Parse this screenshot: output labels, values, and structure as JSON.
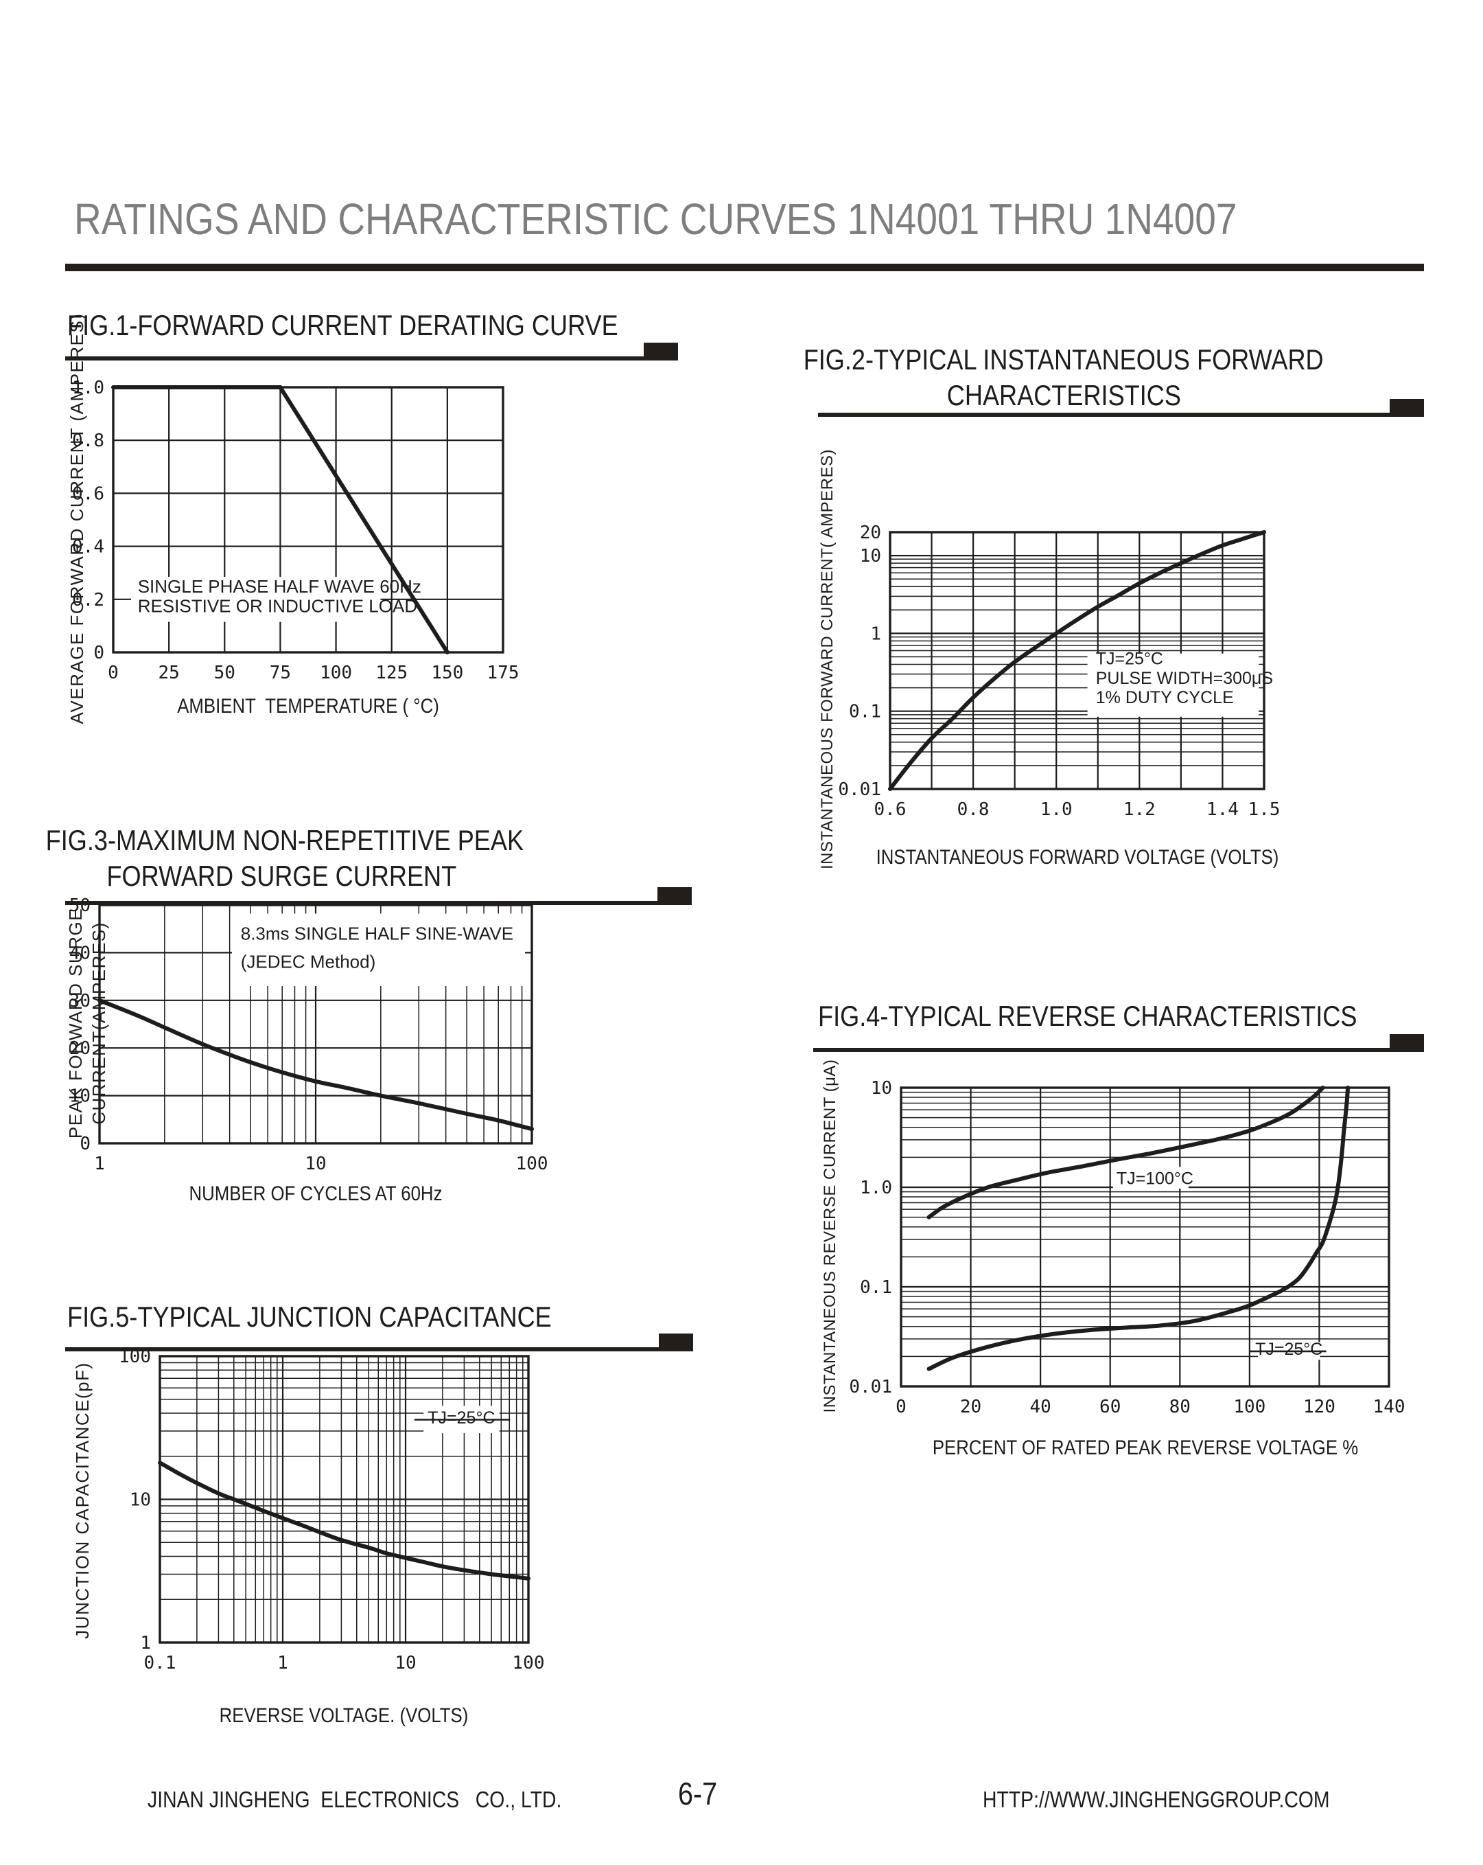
{
  "page": {
    "title": "RATINGS AND CHARACTERISTIC CURVES 1N4001 THRU 1N4007",
    "footer": {
      "company": "JINAN JINGHENG  ELECTRONICS   CO., LTD.",
      "page_number": "6-7",
      "website": "HTTP://WWW.JINGHENGGROUP.COM"
    },
    "colors": {
      "ink": "#1f1d1b",
      "title_gray": "#7e7e7e",
      "background": "#ffffff"
    }
  },
  "chart_data": [
    {
      "id": "fig1",
      "type": "line",
      "title_lines": [
        "FIG.1-FORWARD CURRENT DERATING CURVE"
      ],
      "xlabel": "AMBIENT  TEMPERATURE ( °C)",
      "ylabel_lines": [
        "AVERAGE FORWARD CURRENT  (AMPERES)"
      ],
      "x": {
        "scale": "linear",
        "min": 0,
        "max": 175,
        "ticks": [
          {
            "v": 0,
            "label": "0"
          },
          {
            "v": 25,
            "label": "25"
          },
          {
            "v": 50,
            "label": "50"
          },
          {
            "v": 75,
            "label": "75"
          },
          {
            "v": 100,
            "label": "100"
          },
          {
            "v": 125,
            "label": "125"
          },
          {
            "v": 150,
            "label": "150"
          },
          {
            "v": 175,
            "label": "175"
          }
        ],
        "grid": [
          25,
          50,
          75,
          100,
          125,
          150
        ]
      },
      "y": {
        "scale": "linear",
        "min": 0,
        "max": 1.0,
        "ticks": [
          {
            "v": 0,
            "label": "0"
          },
          {
            "v": 0.2,
            "label": "0.2"
          },
          {
            "v": 0.4,
            "label": "0.4"
          },
          {
            "v": 0.6,
            "label": "0.6"
          },
          {
            "v": 0.8,
            "label": "0.8"
          },
          {
            "v": 1.0,
            "label": "1.0"
          }
        ],
        "grid": [
          0.2,
          0.4,
          0.6,
          0.8
        ]
      },
      "series": [
        {
          "name": "derating-curve",
          "straight": true,
          "points": [
            [
              0,
              1.0
            ],
            [
              75,
              1.0
            ],
            [
              150,
              0
            ]
          ]
        }
      ],
      "annotations": [
        {
          "align": "left",
          "font": "sans",
          "size": 26,
          "box": {
            "x1": 8,
            "x2": 120,
            "y1": 0.115,
            "y2": 0.285
          },
          "lines": [
            {
              "text": "SINGLE PHASE HALF WAVE 60Hz",
              "x": 11,
              "y": 0.225
            },
            {
              "text": "RESISTIVE OR INDUCTIVE LOAD",
              "x": 11,
              "y": 0.152
            }
          ]
        }
      ]
    },
    {
      "id": "fig2",
      "type": "line",
      "title_lines": [
        "FIG.2-TYPICAL INSTANTANEOUS FORWARD",
        "CHARACTERISTICS"
      ],
      "xlabel": "INSTANTANEOUS FORWARD VOLTAGE (VOLTS)",
      "ylabel_lines": [
        "INSTANTANEOUS FORWARD CURRENT( AMPERES)"
      ],
      "x": {
        "scale": "linear",
        "min": 0.6,
        "max": 1.5,
        "ticks": [
          {
            "v": 0.6,
            "label": "0.6"
          },
          {
            "v": 0.8,
            "label": "0.8"
          },
          {
            "v": 1.0,
            "label": "1.0"
          },
          {
            "v": 1.2,
            "label": "1.2"
          },
          {
            "v": 1.4,
            "label": "1.4"
          },
          {
            "v": 1.5,
            "label": "1.5"
          }
        ],
        "grid": [
          0.7,
          0.8,
          0.9,
          1.0,
          1.1,
          1.2,
          1.3,
          1.4
        ]
      },
      "y": {
        "scale": "log",
        "min": 0.01,
        "max": 20,
        "ticks": [
          {
            "v": 20,
            "label": "20"
          },
          {
            "v": 10,
            "label": "10"
          },
          {
            "v": 1,
            "label": "1"
          },
          {
            "v": 0.1,
            "label": "0.1"
          },
          {
            "v": 0.01,
            "label": "0.01"
          }
        ],
        "grid": [
          0.1,
          1,
          10
        ]
      },
      "series": [
        {
          "name": "forward-characteristic",
          "points": [
            [
              0.6,
              0.01
            ],
            [
              0.65,
              0.022
            ],
            [
              0.7,
              0.045
            ],
            [
              0.75,
              0.08
            ],
            [
              0.8,
              0.15
            ],
            [
              0.85,
              0.26
            ],
            [
              0.9,
              0.43
            ],
            [
              0.95,
              0.66
            ],
            [
              1.0,
              1.0
            ],
            [
              1.05,
              1.5
            ],
            [
              1.1,
              2.2
            ],
            [
              1.15,
              3.1
            ],
            [
              1.2,
              4.4
            ],
            [
              1.25,
              6.0
            ],
            [
              1.3,
              8.0
            ],
            [
              1.35,
              10.5
            ],
            [
              1.4,
              13.5
            ],
            [
              1.45,
              16.5
            ],
            [
              1.5,
              20
            ]
          ]
        }
      ],
      "annotations": [
        {
          "align": "left",
          "font": "sans",
          "size": 25,
          "box": {
            "x1": 1.075,
            "x2": 1.487,
            "y1": 0.085,
            "y2": 0.55
          },
          "lines": [
            {
              "text": "TJ=25°C",
              "x": 1.095,
              "y": 0.4
            },
            {
              "text": "PULSE WIDTH=300μS",
              "x": 1.095,
              "y": 0.225
            },
            {
              "text": "1% DUTY CYCLE",
              "x": 1.095,
              "y": 0.127
            }
          ]
        }
      ]
    },
    {
      "id": "fig3",
      "type": "line",
      "title_lines": [
        "FIG.3-MAXIMUM NON-REPETITIVE PEAK",
        "FORWARD SURGE CURRENT"
      ],
      "xlabel": "NUMBER OF CYCLES AT 60Hz",
      "ylabel_lines": [
        "PEAK FORWARD SURGE",
        "CURRENT(AMPERES)"
      ],
      "x": {
        "scale": "log",
        "min": 1,
        "max": 100,
        "ticks": [
          {
            "v": 1,
            "label": "1"
          },
          {
            "v": 10,
            "label": "10"
          },
          {
            "v": 100,
            "label": "100"
          }
        ],
        "grid": [
          10
        ]
      },
      "y": {
        "scale": "linear",
        "min": 0,
        "max": 50,
        "ticks": [
          {
            "v": 0,
            "label": "0"
          },
          {
            "v": 10,
            "label": "10"
          },
          {
            "v": 20,
            "label": "20"
          },
          {
            "v": 30,
            "label": "30"
          },
          {
            "v": 40,
            "label": "40"
          },
          {
            "v": 50,
            "label": "50"
          }
        ],
        "grid": [
          10,
          20,
          30,
          40
        ]
      },
      "series": [
        {
          "name": "surge-current",
          "points": [
            [
              1,
              30
            ],
            [
              1.5,
              26.8
            ],
            [
              2,
              24.3
            ],
            [
              3,
              20.8
            ],
            [
              4,
              18.6
            ],
            [
              5,
              17
            ],
            [
              7,
              14.9
            ],
            [
              10,
              13
            ],
            [
              14,
              11.6
            ],
            [
              20,
              10
            ],
            [
              30,
              8.4
            ],
            [
              50,
              6.2
            ],
            [
              70,
              4.8
            ],
            [
              100,
              3.0
            ]
          ]
        }
      ],
      "annotations": [
        {
          "align": "left",
          "font": "sans",
          "size": 26,
          "box": {
            "x1": 4.1,
            "x2": 93,
            "y1": 33,
            "y2": 48.2
          },
          "lines": [
            {
              "text": "8.3ms SINGLE HALF SINE-WAVE",
              "x": 4.5,
              "y": 42.7
            },
            {
              "text": "(JEDEC Method)",
              "x": 4.5,
              "y": 36.8
            }
          ]
        }
      ]
    },
    {
      "id": "fig4",
      "type": "line",
      "title_lines": [
        "FIG.4-TYPICAL REVERSE CHARACTERISTICS"
      ],
      "xlabel": "PERCENT OF RATED PEAK REVERSE VOLTAGE %",
      "ylabel_lines": [
        "INSTANTANEOUS REVERSE CURRENT  (μA)"
      ],
      "x": {
        "scale": "linear",
        "min": 0,
        "max": 140,
        "ticks": [
          {
            "v": 0,
            "label": "0"
          },
          {
            "v": 20,
            "label": "20"
          },
          {
            "v": 40,
            "label": "40"
          },
          {
            "v": 60,
            "label": "60"
          },
          {
            "v": 80,
            "label": "80"
          },
          {
            "v": 100,
            "label": "100"
          },
          {
            "v": 120,
            "label": "120"
          },
          {
            "v": 140,
            "label": "140"
          }
        ],
        "grid": [
          20,
          40,
          60,
          80,
          100,
          120
        ]
      },
      "y": {
        "scale": "log",
        "min": 0.01,
        "max": 10,
        "ticks": [
          {
            "v": 10,
            "label": "10"
          },
          {
            "v": 1,
            "label": "1.0"
          },
          {
            "v": 0.1,
            "label": "0.1"
          },
          {
            "v": 0.01,
            "label": "0.01"
          }
        ],
        "grid": [
          0.1,
          1
        ]
      },
      "series": [
        {
          "name": "TJ=100°C",
          "points": [
            [
              8,
              0.5
            ],
            [
              12,
              0.63
            ],
            [
              18,
              0.8
            ],
            [
              25,
              1.0
            ],
            [
              33,
              1.18
            ],
            [
              42,
              1.4
            ],
            [
              52,
              1.62
            ],
            [
              62,
              1.9
            ],
            [
              72,
              2.2
            ],
            [
              82,
              2.6
            ],
            [
              92,
              3.1
            ],
            [
              100,
              3.7
            ],
            [
              107,
              4.6
            ],
            [
              112,
              5.6
            ],
            [
              116,
              7.0
            ],
            [
              119,
              8.5
            ],
            [
              121,
              10
            ]
          ]
        },
        {
          "name": "TJ=25°C",
          "points": [
            [
              8,
              0.015
            ],
            [
              15,
              0.0195
            ],
            [
              25,
              0.025
            ],
            [
              35,
              0.03
            ],
            [
              45,
              0.034
            ],
            [
              55,
              0.037
            ],
            [
              65,
              0.039
            ],
            [
              75,
              0.041
            ],
            [
              85,
              0.046
            ],
            [
              95,
              0.057
            ],
            [
              100,
              0.065
            ],
            [
              105,
              0.078
            ],
            [
              110,
              0.095
            ],
            [
              114,
              0.12
            ],
            [
              117,
              0.165
            ],
            [
              119,
              0.215
            ],
            [
              121,
              0.28
            ],
            [
              123,
              0.45
            ],
            [
              124.5,
              0.7
            ],
            [
              125.5,
              1.1
            ],
            [
              126.5,
              2.2
            ],
            [
              127,
              3.5
            ],
            [
              127.8,
              6.5
            ],
            [
              128.2,
              10
            ]
          ]
        }
      ],
      "annotations": [
        {
          "align": "left",
          "font": "sans",
          "size": 25,
          "box": {
            "x1": 60.8,
            "x2": 82.5,
            "y1": 0.97,
            "y2": 1.6
          },
          "lines": [
            {
              "text": "TJ=100°C",
              "x": 61.8,
              "y": 1.07
            }
          ]
        },
        {
          "align": "center",
          "font": "sans",
          "size": 25,
          "box": {
            "x1": 102.4,
            "x2": 120.2,
            "y1": 0.0185,
            "y2": 0.0278
          },
          "leaders": [
            {
              "x1": 100.2,
              "x2": 122,
              "y": 0.0225
            }
          ],
          "lines": [
            {
              "text": "TJ=25°C",
              "x": 111.2,
              "y": 0.0208
            }
          ]
        }
      ]
    },
    {
      "id": "fig5",
      "type": "line",
      "title_lines": [
        "FIG.5-TYPICAL JUNCTION CAPACITANCE"
      ],
      "xlabel": "REVERSE VOLTAGE. (VOLTS)",
      "ylabel_lines": [
        "JUNCTION CAPACITANCE(pF)"
      ],
      "x": {
        "scale": "log",
        "min": 0.1,
        "max": 100,
        "ticks": [
          {
            "v": 0.1,
            "label": "0.1"
          },
          {
            "v": 1,
            "label": "1"
          },
          {
            "v": 10,
            "label": "10"
          },
          {
            "v": 100,
            "label": "100"
          }
        ],
        "grid": [
          1,
          10
        ]
      },
      "y": {
        "scale": "log",
        "min": 1,
        "max": 100,
        "ticks": [
          {
            "v": 1,
            "label": "1"
          },
          {
            "v": 10,
            "label": "10"
          },
          {
            "v": 100,
            "label": "100"
          }
        ],
        "grid": [
          10
        ]
      },
      "series": [
        {
          "name": "junction-capacitance",
          "points": [
            [
              0.1,
              18
            ],
            [
              0.15,
              14.8
            ],
            [
              0.2,
              13
            ],
            [
              0.3,
              11
            ],
            [
              0.4,
              10
            ],
            [
              0.5,
              9.3
            ],
            [
              0.7,
              8.3
            ],
            [
              1,
              7.4
            ],
            [
              1.5,
              6.5
            ],
            [
              2,
              5.9
            ],
            [
              3,
              5.2
            ],
            [
              5,
              4.6
            ],
            [
              7,
              4.2
            ],
            [
              10,
              3.9
            ],
            [
              15,
              3.6
            ],
            [
              20,
              3.4
            ],
            [
              30,
              3.2
            ],
            [
              50,
              3.0
            ],
            [
              70,
              2.9
            ],
            [
              100,
              2.8
            ]
          ]
        }
      ],
      "annotations": [
        {
          "align": "center",
          "font": "sans",
          "size": 25,
          "box": {
            "x1": 14,
            "x2": 58,
            "y1": 29,
            "y2": 45
          },
          "leaders": [
            {
              "x1": 11.8,
              "x2": 71,
              "y": 36
            }
          ],
          "lines": [
            {
              "text": "TJ=25°C",
              "x": 28.6,
              "y": 33.8
            }
          ]
        }
      ]
    }
  ]
}
